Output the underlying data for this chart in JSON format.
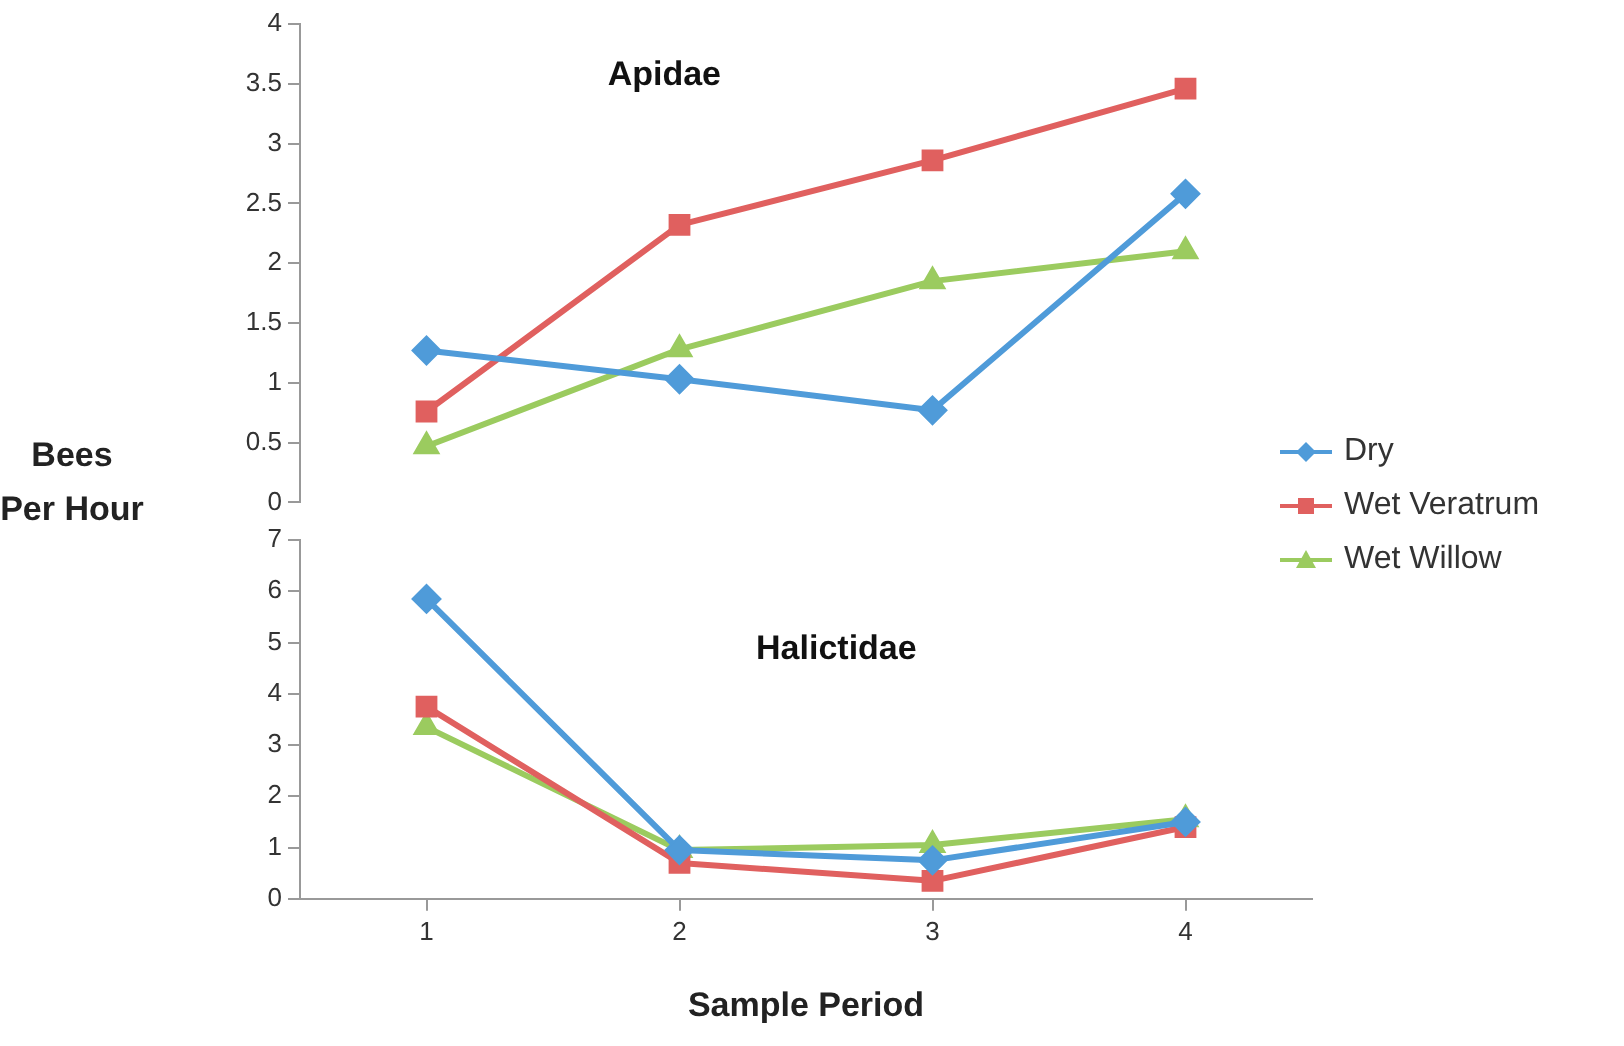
{
  "chart_data": [
    {
      "type": "line",
      "title": "Apidae",
      "ylabel": "Bees Per Hour",
      "categories": [
        "1",
        "2",
        "3",
        "4"
      ],
      "ylim": [
        0,
        4
      ],
      "yticks": [
        0,
        0.5,
        1,
        1.5,
        2,
        2.5,
        3,
        3.5,
        4
      ],
      "grid": false,
      "legend": "right",
      "tick_labels": "y",
      "series": [
        {
          "name": "Dry",
          "color": "#4f9bd9",
          "marker": "diamond",
          "values": [
            1.27,
            1.03,
            0.77,
            2.58
          ]
        },
        {
          "name": "Wet Veratrum",
          "color": "#e0605f",
          "marker": "square",
          "values": [
            0.76,
            2.32,
            2.86,
            3.46
          ]
        },
        {
          "name": "Wet Willow",
          "color": "#9bcb5f",
          "marker": "triangle",
          "values": [
            0.47,
            1.28,
            1.85,
            2.1
          ]
        }
      ]
    },
    {
      "type": "line",
      "title": "Halictidae",
      "xlabel": "Sample Period",
      "categories": [
        "1",
        "2",
        "3",
        "4"
      ],
      "ylim": [
        0,
        7
      ],
      "yticks": [
        0,
        1,
        2,
        3,
        4,
        5,
        6,
        7
      ],
      "grid": false,
      "series": [
        {
          "color": "#4f9bd9",
          "marker": "diamond",
          "values": [
            5.85,
            0.95,
            0.75,
            1.5
          ]
        },
        {
          "color": "#e0605f",
          "marker": "square",
          "values": [
            3.75,
            0.7,
            0.35,
            1.4
          ]
        },
        {
          "color": "#9bcb5f",
          "marker": "triangle",
          "values": [
            3.35,
            0.95,
            1.05,
            1.55
          ]
        }
      ]
    }
  ]
}
